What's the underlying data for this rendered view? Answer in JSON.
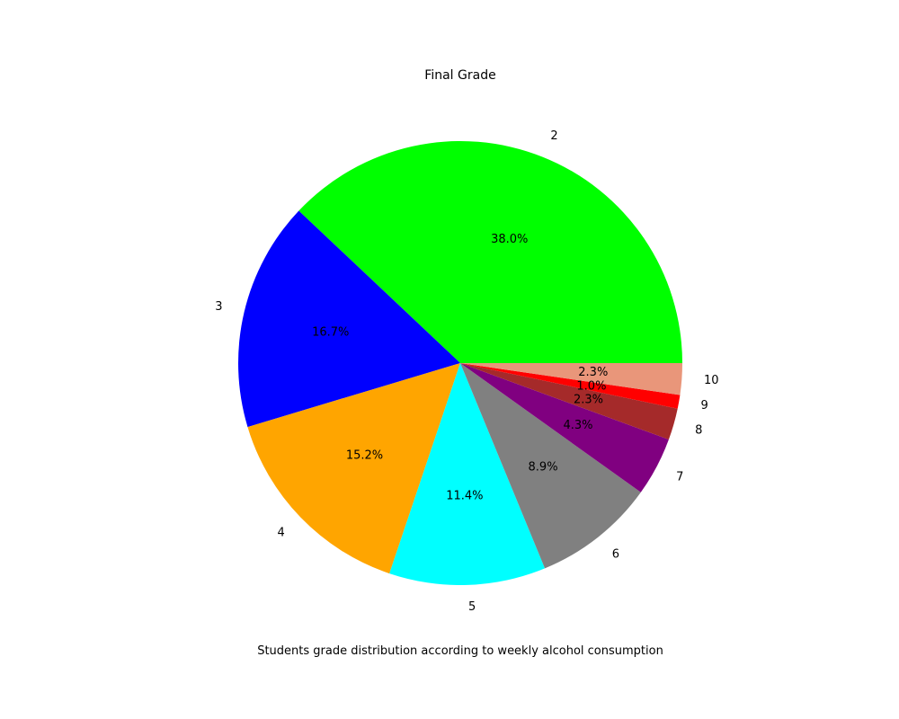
{
  "chart_data": {
    "type": "pie",
    "title": "Final Grade",
    "xlabel": "Students grade distribution according to weekly alcohol consumption",
    "categories": [
      "2",
      "3",
      "4",
      "5",
      "6",
      "7",
      "8",
      "9",
      "10"
    ],
    "values": [
      38.0,
      16.7,
      15.2,
      11.4,
      8.9,
      4.3,
      2.3,
      1.0,
      2.3
    ],
    "value_labels": [
      "38.0%",
      "16.7%",
      "15.2%",
      "11.4%",
      "8.9%",
      "4.3%",
      "2.3%",
      "1.0%",
      "2.3%"
    ],
    "colors": [
      "#00ff00",
      "#0000ff",
      "#ffa500",
      "#00ffff",
      "#808080",
      "#800080",
      "#a52a2a",
      "#ff0000",
      "#e9967a"
    ],
    "start_angle_deg": 0,
    "direction": "counterclockwise",
    "legend": "none"
  }
}
